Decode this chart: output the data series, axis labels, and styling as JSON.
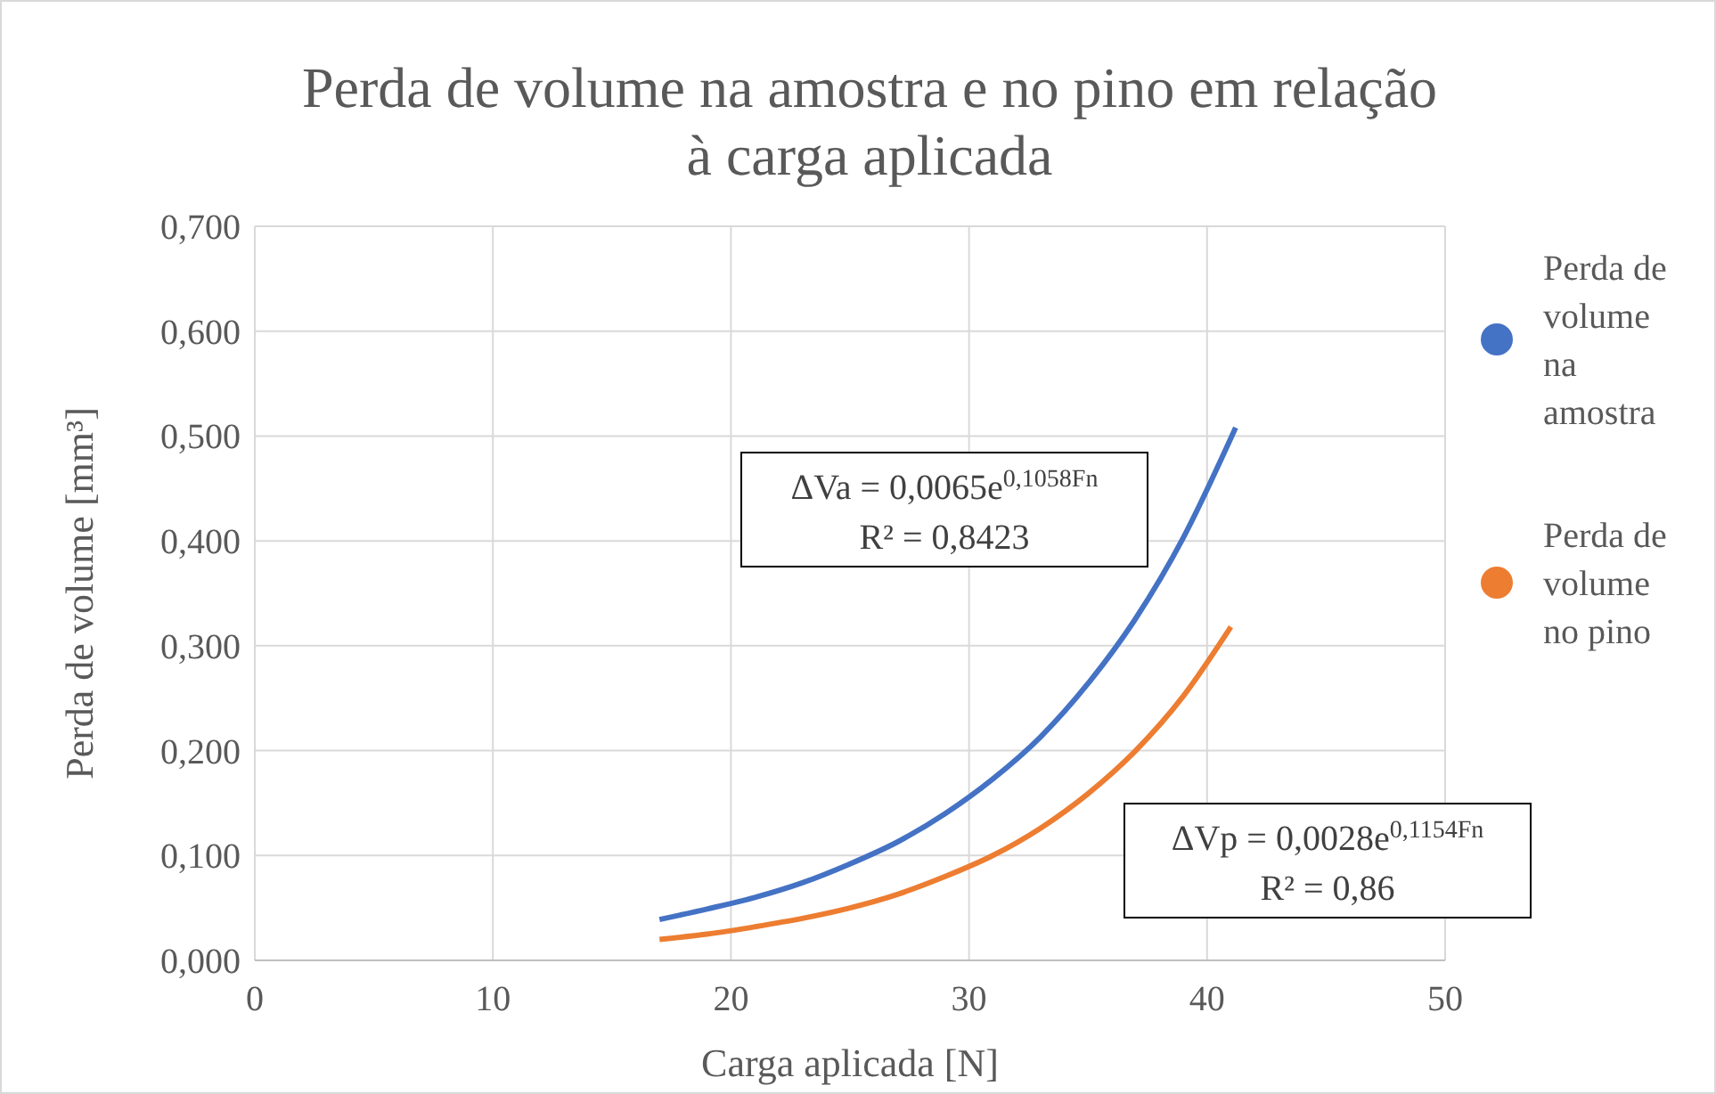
{
  "chart_data": {
    "type": "line",
    "title": "Perda de volume na amostra e no pino em relação\nà carga aplicada",
    "xlabel": "Carga aplicada [N]",
    "ylabel": "Perda de volume [mm³]",
    "xlim": [
      0,
      50
    ],
    "xticks": [
      0,
      10,
      20,
      30,
      40,
      50
    ],
    "ylim": [
      0,
      0.7
    ],
    "yticks": [
      {
        "value": 0,
        "label": "0,000"
      },
      {
        "value": 0.1,
        "label": "0,100"
      },
      {
        "value": 0.2,
        "label": "0,200"
      },
      {
        "value": 0.3,
        "label": "0,300"
      },
      {
        "value": 0.4,
        "label": "0,400"
      },
      {
        "value": 0.5,
        "label": "0,500"
      },
      {
        "value": 0.6,
        "label": "0,600"
      },
      {
        "value": 0.7,
        "label": "0,700"
      }
    ],
    "grid": true,
    "legend": "right",
    "series": [
      {
        "name": "Perda de volume na amostra",
        "color": "#4472c4",
        "x": [
          17,
          19,
          21,
          23,
          25,
          27,
          29,
          31,
          33,
          35,
          37,
          39,
          41,
          41.2
        ],
        "values": [
          0.039,
          0.049,
          0.06,
          0.074,
          0.092,
          0.113,
          0.14,
          0.173,
          0.213,
          0.264,
          0.326,
          0.403,
          0.498,
          0.508
        ]
      },
      {
        "name": "Perda de volume no pino",
        "color": "#ed7d31",
        "x": [
          17,
          19,
          21,
          23,
          25,
          27,
          29,
          31,
          33,
          35,
          37,
          39,
          41
        ],
        "values": [
          0.02,
          0.025,
          0.032,
          0.04,
          0.05,
          0.063,
          0.08,
          0.1,
          0.126,
          0.159,
          0.2,
          0.252,
          0.318
        ]
      }
    ],
    "annotations": [
      "ΔVa = 0,0065e$^{0,1058Fn}$\nR² = 0,8423",
      "ΔVp = 0,0028e$^{0,1154Fn}$\nR² = 0,86"
    ]
  }
}
